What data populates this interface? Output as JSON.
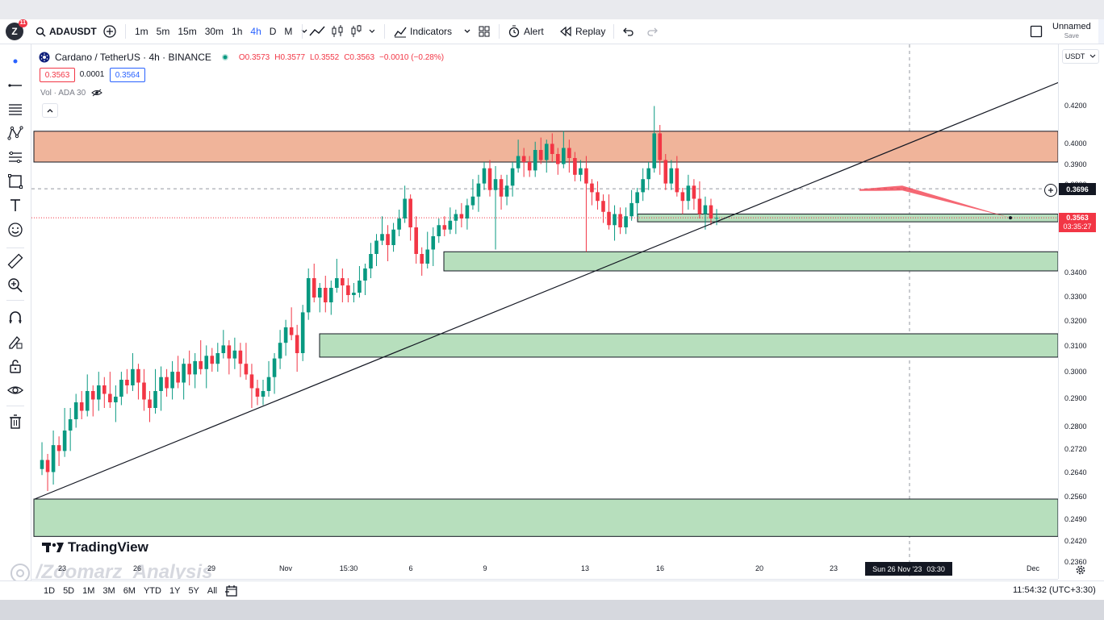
{
  "toolbar": {
    "avatar_letter": "Z",
    "notification_count": "11",
    "symbol": "ADAUSDT",
    "timeframes": [
      "1m",
      "5m",
      "15m",
      "30m",
      "1h",
      "4h",
      "D",
      "M"
    ],
    "active_timeframe": "4h",
    "indicators_label": "Indicators",
    "alert_label": "Alert",
    "replay_label": "Replay",
    "layout_name": "Unnamed",
    "save_label": "Save"
  },
  "legend": {
    "title": "Cardano / TetherUS · 4h · BINANCE",
    "open": "O0.3573",
    "high": "H0.3577",
    "low": "L0.3552",
    "close": "C0.3563",
    "change": "−0.0010 (−0.28%)",
    "bid": "0.3563",
    "spread": "0.0001",
    "ask": "0.3564",
    "volume_label": "Vol · ADA 30"
  },
  "price_axis": {
    "currency": "USDT",
    "ticks": [
      "0.4200",
      "0.4000",
      "0.3900",
      "0.3800",
      "0.3600",
      "0.3400",
      "0.3300",
      "0.3200",
      "0.3100",
      "0.3000",
      "0.2900",
      "0.2800",
      "0.2720",
      "0.2640",
      "0.2560",
      "0.2490",
      "0.2420",
      "0.2360"
    ],
    "crosshair_price": "0.3696",
    "last_price": "0.3563",
    "countdown": "03:35:27"
  },
  "time_axis": {
    "ticks": [
      "23",
      "26",
      "29",
      "Nov",
      "15:30",
      "6",
      "9",
      "13",
      "16",
      "20",
      "23",
      "Dec"
    ],
    "crosshair_label": "Sun 26 Nov '23",
    "crosshair_time": "03:30"
  },
  "bottom_bar": {
    "ranges": [
      "1D",
      "5D",
      "1M",
      "3M",
      "6M",
      "YTD",
      "1Y",
      "5Y",
      "All"
    ],
    "clock": "11:54:32 (UTC+3:30)"
  },
  "watermark": {
    "brand": "TradingView",
    "author": "/Zoomarz_Analysis"
  },
  "colors": {
    "up": "#089981",
    "down": "#f23645",
    "supply_zone": "#f0b49a",
    "demand_zone": "#b7dfbd",
    "accent": "#2962ff"
  },
  "chart_data": {
    "type": "candlestick",
    "symbol": "ADAUSDT",
    "interval": "4h",
    "x_labels": [
      "23",
      "26",
      "29",
      "Nov",
      "15:30",
      "6",
      "9",
      "13",
      "16",
      "20",
      "23",
      "Dec"
    ],
    "ylim": [
      0.233,
      0.43
    ],
    "supply_zone": [
      0.382,
      0.397
    ],
    "demand_zones": [
      [
        0.3545,
        0.358
      ],
      [
        0.333,
        0.341
      ],
      [
        0.2985,
        0.3075
      ],
      [
        0.238,
        0.2495
      ]
    ],
    "trendline": {
      "from": [
        "23",
        0.2495
      ],
      "to": [
        "Dec",
        0.4225
      ]
    },
    "forecast": {
      "from": 0.369,
      "to": 0.3565
    },
    "last_close": 0.3563,
    "price_path": [
      0.259,
      0.262,
      0.258,
      0.267,
      0.265,
      0.272,
      0.276,
      0.282,
      0.279,
      0.286,
      0.283,
      0.288,
      0.285,
      0.282,
      0.284,
      0.29,
      0.288,
      0.294,
      0.289,
      0.283,
      0.28,
      0.286,
      0.291,
      0.287,
      0.293,
      0.289,
      0.296,
      0.292,
      0.297,
      0.294,
      0.299,
      0.296,
      0.3,
      0.303,
      0.298,
      0.301,
      0.296,
      0.292,
      0.287,
      0.284,
      0.286,
      0.291,
      0.298,
      0.304,
      0.31,
      0.307,
      0.3,
      0.316,
      0.33,
      0.322,
      0.326,
      0.32,
      0.326,
      0.33,
      0.327,
      0.323,
      0.324,
      0.329,
      0.334,
      0.34,
      0.346,
      0.349,
      0.344,
      0.351,
      0.356,
      0.365,
      0.352,
      0.34,
      0.336,
      0.342,
      0.348,
      0.353,
      0.351,
      0.355,
      0.358,
      0.356,
      0.362,
      0.366,
      0.372,
      0.379,
      0.369,
      0.374,
      0.366,
      0.371,
      0.379,
      0.385,
      0.382,
      0.378,
      0.388,
      0.383,
      0.391,
      0.386,
      0.381,
      0.389,
      0.384,
      0.376,
      0.379,
      0.372,
      0.368,
      0.364,
      0.359,
      0.353,
      0.358,
      0.352,
      0.357,
      0.363,
      0.368,
      0.374,
      0.379,
      0.396,
      0.383,
      0.372,
      0.379,
      0.368,
      0.364,
      0.371,
      0.365,
      0.358,
      0.362,
      0.356,
      0.3563
    ]
  }
}
